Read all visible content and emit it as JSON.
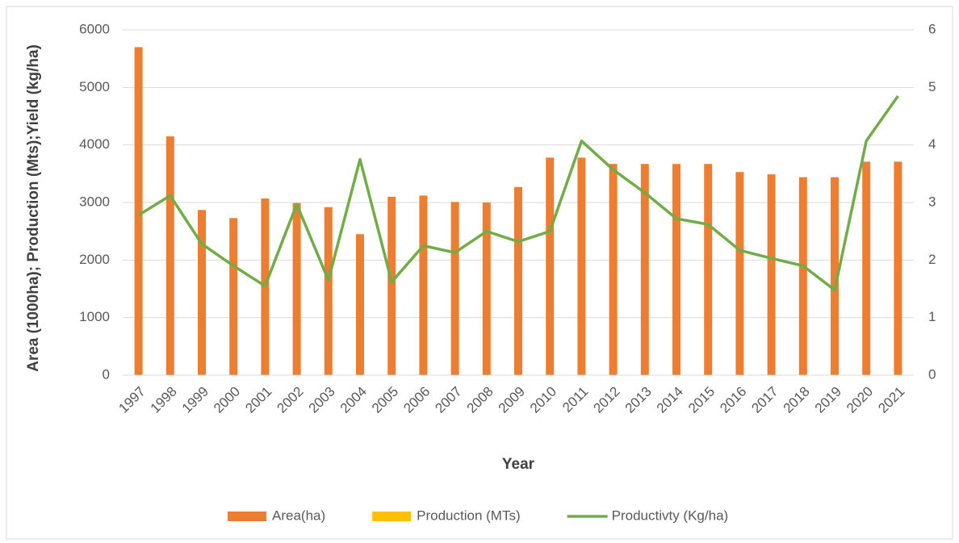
{
  "chart_data": {
    "type": "bar-line",
    "x_label": "Year",
    "y_label": "Area (1000ha); Production (Mts);Yield (kg/ha)",
    "categories": [
      "1997",
      "1998",
      "1999",
      "2000",
      "2001",
      "2002",
      "2003",
      "2004",
      "2005",
      "2006",
      "2007",
      "2008",
      "2009",
      "2010",
      "2011",
      "2012",
      "2013",
      "2014",
      "2015",
      "2016",
      "2017",
      "2018",
      "2019",
      "2020",
      "2021"
    ],
    "series": [
      {
        "name": "Area(ha)",
        "type": "bar",
        "color": "#ed7d31",
        "values": [
          5700,
          4150,
          2870,
          2730,
          3070,
          2990,
          2920,
          2450,
          3100,
          3120,
          3010,
          3000,
          3270,
          3780,
          3780,
          3670,
          3670,
          3670,
          3670,
          3530,
          3490,
          3440,
          3440,
          3710,
          3710
        ]
      },
      {
        "name": "Production (MTs)",
        "type": "bar",
        "color": "#ffc000",
        "values": [
          null,
          null,
          null,
          null,
          null,
          null,
          null,
          null,
          null,
          null,
          null,
          null,
          null,
          null,
          null,
          null,
          null,
          null,
          null,
          null,
          null,
          null,
          null,
          null,
          null
        ]
      },
      {
        "name": "Productivty (Kg/ha)",
        "type": "line",
        "color": "#70ad47",
        "axis": "y2",
        "values": [
          2.78,
          3.12,
          2.28,
          1.9,
          1.55,
          2.97,
          1.65,
          3.75,
          1.62,
          2.25,
          2.13,
          2.5,
          2.32,
          2.5,
          4.07,
          3.57,
          3.17,
          2.72,
          2.62,
          2.17,
          2.03,
          1.9,
          1.48,
          4.07,
          4.85
        ]
      }
    ],
    "ylim": [
      0,
      6000
    ],
    "yticks": [
      0,
      1000,
      2000,
      3000,
      4000,
      5000,
      6000
    ],
    "y2lim": [
      0,
      6
    ],
    "y2ticks": [
      0,
      1,
      2,
      3,
      4,
      5,
      6
    ],
    "grid": true,
    "legend": "bottom"
  }
}
